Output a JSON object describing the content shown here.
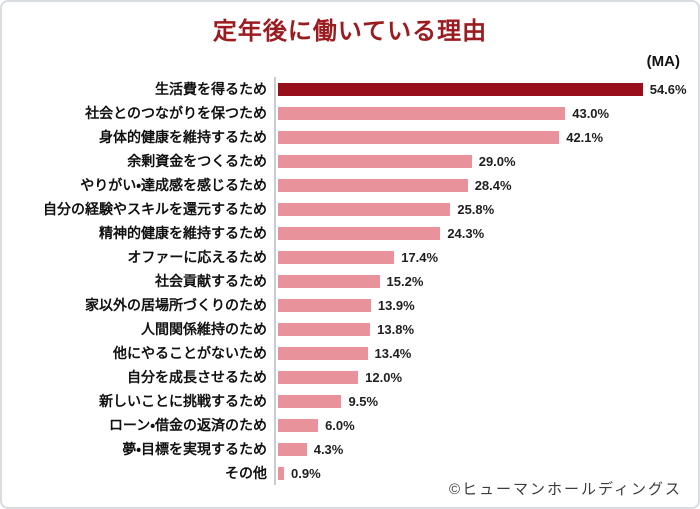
{
  "title": "定年後に働いている理由",
  "ma_label": "(MA)",
  "copyright": "©ヒューマンホールディングス",
  "colors": {
    "title": "#9B1C20",
    "bar_highlight": "#970F1B",
    "bar_normal": "#E8929B",
    "axis_line": "#C9CDD2",
    "card_border": "#D9DDE1",
    "value_text": "#1F1F1F",
    "label_text": "#111111",
    "copyright_text": "#3C3C3C"
  },
  "chart_data": {
    "type": "bar",
    "orientation": "horizontal",
    "title": "定年後に働いている理由",
    "annotation": "(MA)",
    "categories": [
      "生活費を得るため",
      "社会とのつながりを保つため",
      "身体的健康を維持するため",
      "余剰資金をつくるため",
      "やりがい・達成感を感じるため",
      "自分の経験やスキルを還元するため",
      "精神的健康を維持するため",
      "オファーに応えるため",
      "社会貢献するため",
      "家以外の居場所づくりのため",
      "人間関係維持のため",
      "他にやることがないため",
      "自分を成長させるため",
      "新しいことに挑戦するため",
      "ローン・借金の返済のため",
      "夢・目標を実現するため",
      "その他"
    ],
    "values": [
      54.6,
      43.0,
      42.1,
      29.0,
      28.4,
      25.8,
      24.3,
      17.4,
      15.2,
      13.9,
      13.8,
      13.4,
      12.0,
      9.5,
      6.0,
      4.3,
      0.9
    ],
    "unit": "%",
    "xlim": [
      0,
      60
    ],
    "highlight_index": 0,
    "value_labels_shown": true,
    "legend": "none",
    "grid": false
  }
}
